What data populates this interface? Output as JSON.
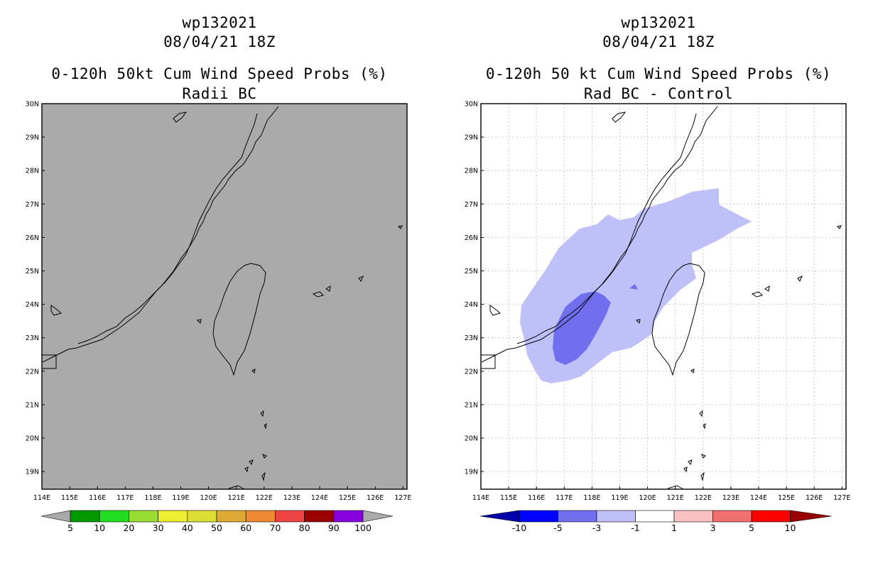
{
  "panels": [
    {
      "storm_id": "wp132021",
      "datetime": "08/04/21 18Z",
      "title": "0-120h 50kt Cum Wind Speed Probs (%)",
      "subtitle": "Radii BC",
      "background_color": "#aaaaaa",
      "legend": {
        "labels": [
          "5",
          "10",
          "20",
          "30",
          "40",
          "50",
          "60",
          "70",
          "80",
          "90",
          "100"
        ],
        "colors": [
          "#aaaaaa",
          "#009900",
          "#22dd22",
          "#99dd33",
          "#eeee33",
          "#dddd33",
          "#ddaa33",
          "#ee8833",
          "#ee4444",
          "#990000",
          "#8800dd",
          "#aaaaaa"
        ]
      }
    },
    {
      "storm_id": "wp132021",
      "datetime": "08/04/21 18Z",
      "title": "0-120h 50 kt Cum Wind Speed Probs (%)",
      "subtitle": "Rad BC - Control",
      "background_color": "#ffffff",
      "legend": {
        "labels": [
          "-10",
          "-5",
          "-3",
          "-1",
          "1",
          "3",
          "5",
          "10"
        ],
        "colors": [
          "#0000aa",
          "#0000ff",
          "#7070ee",
          "#c0c0f8",
          "#ffffff",
          "#f8c0c0",
          "#f07070",
          "#ff0000",
          "#990000"
        ]
      }
    }
  ],
  "map": {
    "lat_labels": [
      "30N",
      "29N",
      "28N",
      "27N",
      "26N",
      "25N",
      "24N",
      "23N",
      "22N",
      "21N",
      "20N",
      "19N"
    ],
    "lon_labels": [
      "114E",
      "115E",
      "116E",
      "117E",
      "118E",
      "119E",
      "120E",
      "121E",
      "122E",
      "123E",
      "124E",
      "125E",
      "126E",
      "127E"
    ]
  }
}
